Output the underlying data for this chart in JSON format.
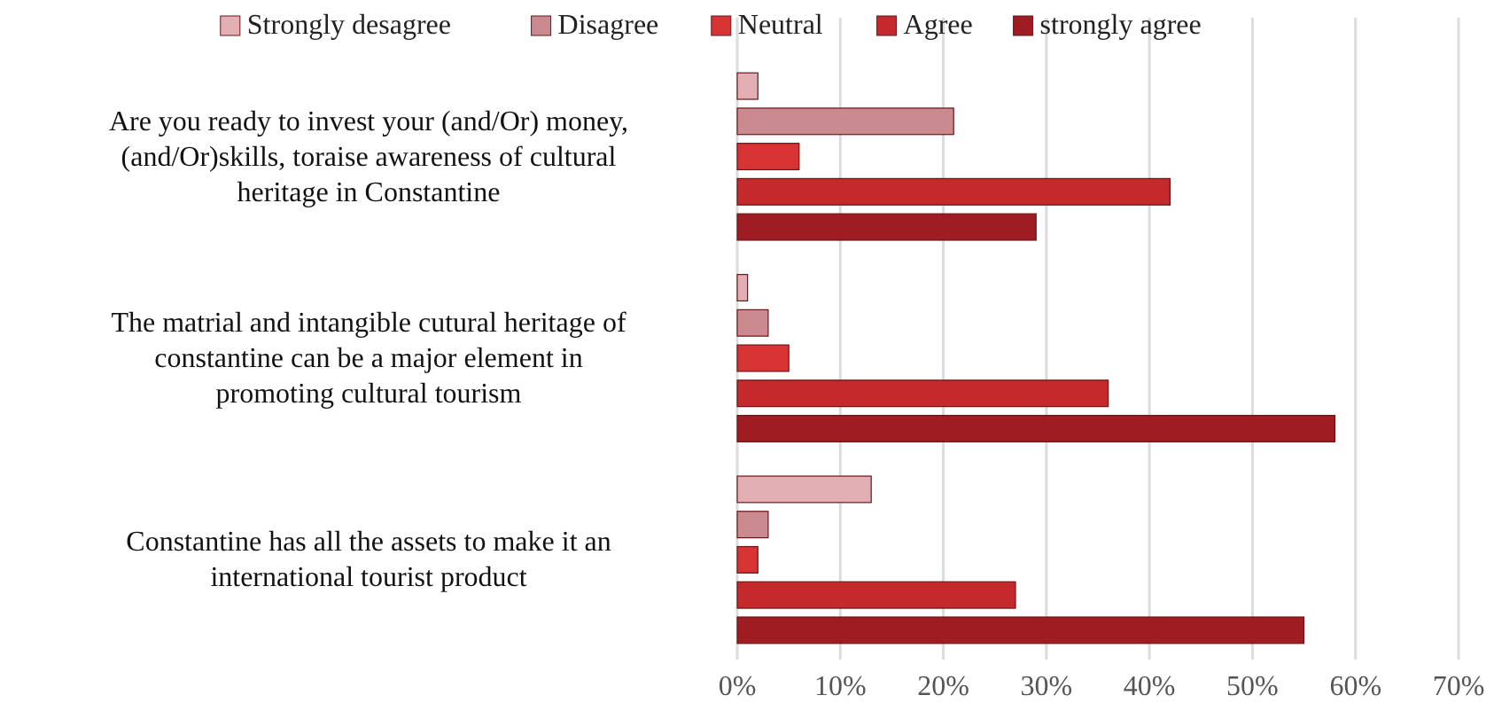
{
  "chart_data": {
    "type": "bar",
    "orientation": "horizontal",
    "categories": [
      "Are you ready to invest your (and/Or) money, (and/Or)skills, toraise awareness of cultural heritage in Constantine",
      "The matrial and intangible cutural heritage of constantine can be a major element in promoting cultural tourism",
      "Constantine has all the assets to make it an international tourist product"
    ],
    "series": [
      {
        "name": "Strongly desagree",
        "color": "#e2b0b4",
        "values": [
          2,
          1,
          13
        ]
      },
      {
        "name": "Disagree",
        "color": "#c98a90",
        "values": [
          21,
          3,
          3
        ]
      },
      {
        "name": "Neutral",
        "color": "#d93434",
        "values": [
          6,
          5,
          2
        ]
      },
      {
        "name": "Agree",
        "color": "#c42a2c",
        "values": [
          42,
          36,
          27
        ]
      },
      {
        "name": "strongly agree",
        "color": "#9e1c22",
        "values": [
          29,
          58,
          55
        ]
      }
    ],
    "xlim": [
      0,
      70
    ],
    "xticks": [
      {
        "value": 0,
        "label": "0%"
      },
      {
        "value": 10,
        "label": "10%"
      },
      {
        "value": 20,
        "label": "20%"
      },
      {
        "value": 30,
        "label": "30%"
      },
      {
        "value": 40,
        "label": "40%"
      },
      {
        "value": 50,
        "label": "50%"
      },
      {
        "value": 60,
        "label": "60%"
      },
      {
        "value": 70,
        "label": "70%"
      }
    ],
    "grid": "x",
    "legend": "top"
  }
}
